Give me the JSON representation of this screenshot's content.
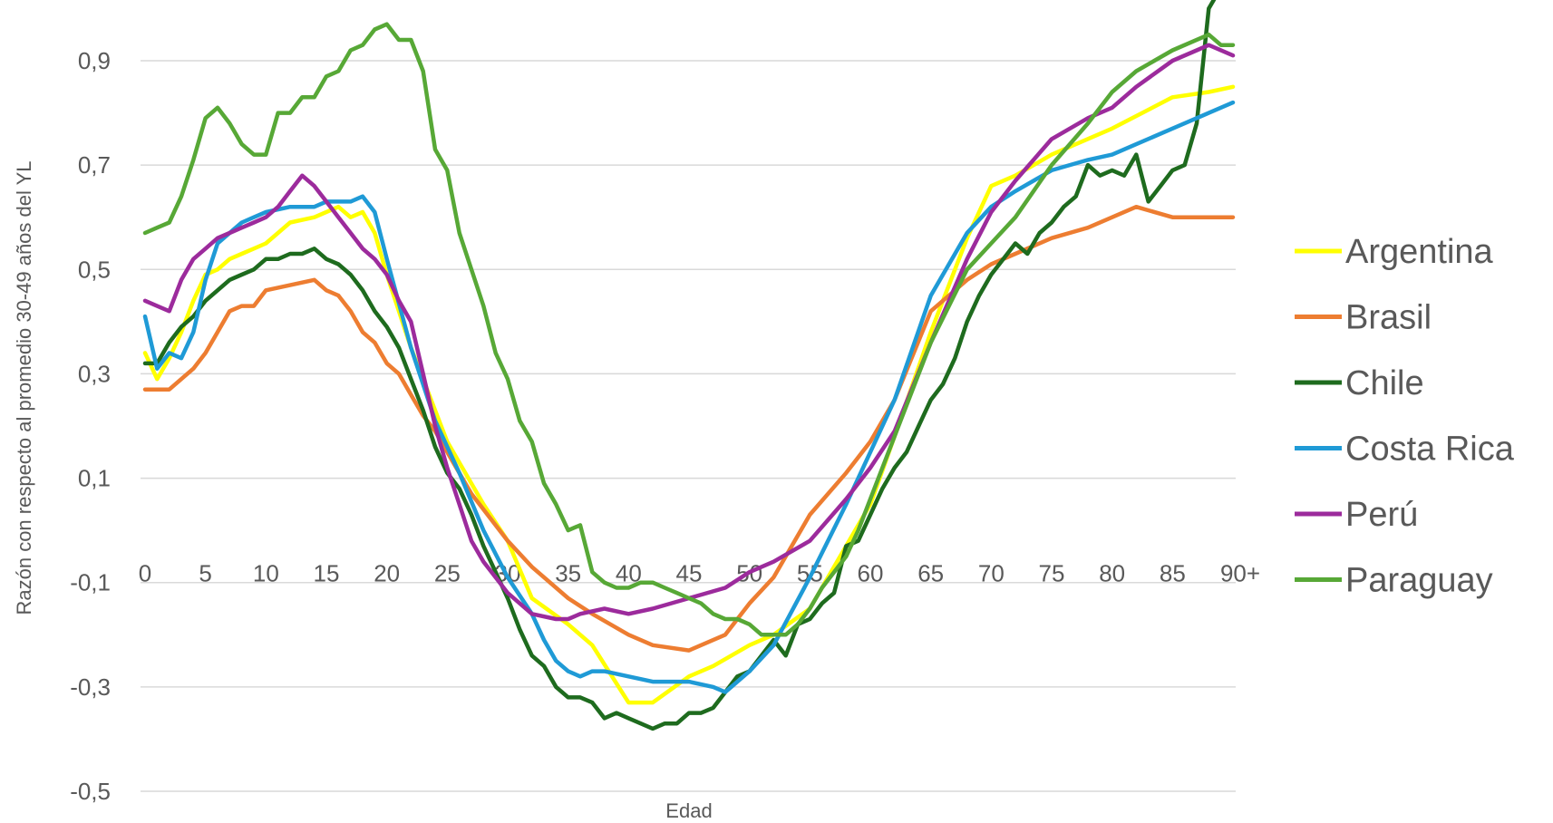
{
  "chart_data": {
    "type": "line",
    "xlabel": "Edad",
    "ylabel": "Razón con respecto al promedio 30-49 años del YL",
    "ylim": [
      -0.5,
      0.9
    ],
    "yticks": [
      {
        "value": 0.9,
        "label": "0,9"
      },
      {
        "value": 0.7,
        "label": "0,7"
      },
      {
        "value": 0.5,
        "label": "0,5"
      },
      {
        "value": 0.3,
        "label": "0,3"
      },
      {
        "value": 0.1,
        "label": "0,1"
      },
      {
        "value": -0.1,
        "label": "-0,1"
      },
      {
        "value": -0.3,
        "label": "-0,3"
      },
      {
        "value": -0.5,
        "label": "-0,5"
      }
    ],
    "xticks": [
      {
        "value": 0,
        "label": "0"
      },
      {
        "value": 5,
        "label": "5"
      },
      {
        "value": 10,
        "label": "10"
      },
      {
        "value": 15,
        "label": "15"
      },
      {
        "value": 20,
        "label": "20"
      },
      {
        "value": 25,
        "label": "25"
      },
      {
        "value": 30,
        "label": "30"
      },
      {
        "value": 35,
        "label": "35"
      },
      {
        "value": 40,
        "label": "40"
      },
      {
        "value": 45,
        "label": "45"
      },
      {
        "value": 50,
        "label": "50"
      },
      {
        "value": 55,
        "label": "55"
      },
      {
        "value": 60,
        "label": "60"
      },
      {
        "value": 65,
        "label": "65"
      },
      {
        "value": 70,
        "label": "70"
      },
      {
        "value": 75,
        "label": "75"
      },
      {
        "value": 80,
        "label": "80"
      },
      {
        "value": 85,
        "label": "85"
      },
      {
        "value": 90,
        "label": "90+"
      }
    ],
    "grid": true,
    "legend_position": "right",
    "series": [
      {
        "name": "Argentina",
        "color": "#ffff00",
        "x": [
          0,
          1,
          2,
          3,
          4,
          5,
          6,
          7,
          8,
          9,
          10,
          12,
          14,
          16,
          17,
          18,
          19,
          20,
          22,
          25,
          28,
          30,
          32,
          35,
          37,
          40,
          42,
          45,
          47,
          50,
          52,
          55,
          58,
          60,
          62,
          65,
          68,
          70,
          72,
          75,
          80,
          85,
          88,
          90
        ],
        "y": [
          0.34,
          0.29,
          0.33,
          0.38,
          0.44,
          0.49,
          0.5,
          0.52,
          0.53,
          0.54,
          0.55,
          0.59,
          0.6,
          0.62,
          0.6,
          0.61,
          0.57,
          0.49,
          0.35,
          0.17,
          0.05,
          -0.02,
          -0.13,
          -0.18,
          -0.22,
          -0.33,
          -0.33,
          -0.28,
          -0.26,
          -0.22,
          -0.2,
          -0.15,
          -0.03,
          0.05,
          0.18,
          0.38,
          0.56,
          0.66,
          0.68,
          0.72,
          0.77,
          0.83,
          0.84,
          0.85
        ]
      },
      {
        "name": "Brasil",
        "color": "#ed7d31",
        "x": [
          0,
          1,
          2,
          3,
          4,
          5,
          6,
          7,
          8,
          9,
          10,
          12,
          14,
          15,
          16,
          17,
          18,
          19,
          20,
          21,
          22,
          23,
          24,
          25,
          27,
          30,
          32,
          35,
          37,
          40,
          42,
          45,
          48,
          50,
          52,
          55,
          58,
          60,
          62,
          65,
          68,
          70,
          72,
          75,
          78,
          80,
          82,
          85,
          88,
          90
        ],
        "y": [
          0.27,
          0.27,
          0.27,
          0.29,
          0.31,
          0.34,
          0.38,
          0.42,
          0.43,
          0.43,
          0.46,
          0.47,
          0.48,
          0.46,
          0.45,
          0.42,
          0.38,
          0.36,
          0.32,
          0.3,
          0.26,
          0.22,
          0.19,
          0.15,
          0.07,
          -0.02,
          -0.07,
          -0.13,
          -0.16,
          -0.2,
          -0.22,
          -0.23,
          -0.2,
          -0.14,
          -0.09,
          0.03,
          0.11,
          0.17,
          0.25,
          0.42,
          0.48,
          0.51,
          0.53,
          0.56,
          0.58,
          0.6,
          0.62,
          0.6,
          0.6,
          0.6
        ]
      },
      {
        "name": "Chile",
        "color": "#1e6b1e",
        "x": [
          0,
          1,
          2,
          3,
          4,
          5,
          6,
          7,
          8,
          9,
          10,
          11,
          12,
          13,
          14,
          15,
          16,
          17,
          18,
          19,
          20,
          21,
          22,
          23,
          24,
          25,
          26,
          27,
          28,
          29,
          30,
          31,
          32,
          33,
          34,
          35,
          36,
          37,
          38,
          39,
          40,
          41,
          42,
          43,
          44,
          45,
          46,
          47,
          48,
          49,
          50,
          51,
          52,
          53,
          54,
          55,
          56,
          57,
          58,
          59,
          60,
          61,
          62,
          63,
          64,
          65,
          66,
          67,
          68,
          69,
          70,
          71,
          72,
          73,
          74,
          75,
          76,
          77,
          78,
          79,
          80,
          81,
          82,
          83,
          84,
          85,
          86,
          87,
          88,
          88.5
        ],
        "y": [
          0.32,
          0.32,
          0.36,
          0.39,
          0.41,
          0.44,
          0.46,
          0.48,
          0.49,
          0.5,
          0.52,
          0.52,
          0.53,
          0.53,
          0.54,
          0.52,
          0.51,
          0.49,
          0.46,
          0.42,
          0.39,
          0.35,
          0.29,
          0.23,
          0.16,
          0.11,
          0.08,
          0.03,
          -0.03,
          -0.08,
          -0.13,
          -0.19,
          -0.24,
          -0.26,
          -0.3,
          -0.32,
          -0.32,
          -0.33,
          -0.36,
          -0.35,
          -0.36,
          -0.37,
          -0.38,
          -0.37,
          -0.37,
          -0.35,
          -0.35,
          -0.34,
          -0.31,
          -0.28,
          -0.27,
          -0.24,
          -0.21,
          -0.24,
          -0.18,
          -0.17,
          -0.14,
          -0.12,
          -0.03,
          -0.02,
          0.03,
          0.08,
          0.12,
          0.15,
          0.2,
          0.25,
          0.28,
          0.33,
          0.4,
          0.45,
          0.49,
          0.52,
          0.55,
          0.53,
          0.57,
          0.59,
          0.62,
          0.64,
          0.7,
          0.68,
          0.69,
          0.68,
          0.72,
          0.63,
          0.66,
          0.69,
          0.7,
          0.78,
          1.0,
          1.02
        ]
      },
      {
        "name": "Costa Rica",
        "color": "#1f9ad6",
        "x": [
          0,
          1,
          2,
          3,
          4,
          5,
          6,
          7,
          8,
          9,
          10,
          12,
          14,
          15,
          16,
          17,
          18,
          19,
          20,
          22,
          24,
          26,
          28,
          30,
          32,
          33,
          34,
          35,
          36,
          37,
          38,
          40,
          42,
          45,
          47,
          48,
          50,
          52,
          55,
          58,
          60,
          62,
          65,
          68,
          70,
          72,
          75,
          78,
          80,
          82,
          85,
          88,
          90
        ],
        "y": [
          0.41,
          0.31,
          0.34,
          0.33,
          0.38,
          0.48,
          0.55,
          0.57,
          0.59,
          0.6,
          0.61,
          0.62,
          0.62,
          0.63,
          0.63,
          0.63,
          0.64,
          0.61,
          0.52,
          0.35,
          0.21,
          0.11,
          0.0,
          -0.09,
          -0.16,
          -0.21,
          -0.25,
          -0.27,
          -0.28,
          -0.27,
          -0.27,
          -0.28,
          -0.29,
          -0.29,
          -0.3,
          -0.31,
          -0.27,
          -0.22,
          -0.09,
          0.05,
          0.15,
          0.25,
          0.45,
          0.57,
          0.62,
          0.65,
          0.69,
          0.71,
          0.72,
          0.74,
          0.77,
          0.8,
          0.82
        ]
      },
      {
        "name": "Perú",
        "color": "#9c2b9c",
        "x": [
          0,
          1,
          2,
          3,
          4,
          5,
          6,
          7,
          8,
          9,
          10,
          11,
          12,
          13,
          14,
          15,
          16,
          17,
          18,
          19,
          20,
          21,
          22,
          23,
          24,
          25,
          26,
          27,
          28,
          29,
          30,
          32,
          34,
          35,
          36,
          38,
          40,
          42,
          45,
          48,
          50,
          52,
          55,
          58,
          60,
          62,
          65,
          68,
          70,
          72,
          75,
          78,
          80,
          82,
          85,
          87,
          88,
          90
        ],
        "y": [
          0.44,
          0.43,
          0.42,
          0.48,
          0.52,
          0.54,
          0.56,
          0.57,
          0.58,
          0.59,
          0.6,
          0.62,
          0.65,
          0.68,
          0.66,
          0.63,
          0.6,
          0.57,
          0.54,
          0.52,
          0.49,
          0.44,
          0.4,
          0.3,
          0.2,
          0.12,
          0.05,
          -0.02,
          -0.06,
          -0.09,
          -0.12,
          -0.16,
          -0.17,
          -0.17,
          -0.16,
          -0.15,
          -0.16,
          -0.15,
          -0.13,
          -0.11,
          -0.08,
          -0.06,
          -0.02,
          0.06,
          0.12,
          0.19,
          0.36,
          0.52,
          0.61,
          0.67,
          0.75,
          0.79,
          0.81,
          0.85,
          0.9,
          0.92,
          0.93,
          0.91
        ]
      },
      {
        "name": "Paraguay",
        "color": "#57a836",
        "x": [
          0,
          1,
          2,
          3,
          4,
          5,
          6,
          7,
          8,
          9,
          10,
          11,
          12,
          13,
          14,
          15,
          16,
          17,
          18,
          19,
          20,
          21,
          22,
          23,
          24,
          25,
          26,
          27,
          28,
          29,
          30,
          31,
          32,
          33,
          34,
          35,
          36,
          37,
          38,
          39,
          40,
          41,
          42,
          43,
          44,
          45,
          46,
          47,
          48,
          49,
          50,
          51,
          52,
          53,
          54,
          55,
          56,
          57,
          58,
          59,
          60,
          62,
          65,
          68,
          70,
          72,
          75,
          78,
          80,
          82,
          85,
          88,
          89,
          90
        ],
        "y": [
          0.57,
          0.58,
          0.59,
          0.64,
          0.71,
          0.79,
          0.81,
          0.78,
          0.74,
          0.72,
          0.72,
          0.8,
          0.8,
          0.83,
          0.83,
          0.87,
          0.88,
          0.92,
          0.93,
          0.96,
          0.97,
          0.94,
          0.94,
          0.88,
          0.73,
          0.69,
          0.57,
          0.5,
          0.43,
          0.34,
          0.29,
          0.21,
          0.17,
          0.09,
          0.05,
          0.0,
          0.01,
          -0.08,
          -0.1,
          -0.11,
          -0.11,
          -0.1,
          -0.1,
          -0.11,
          -0.12,
          -0.13,
          -0.14,
          -0.16,
          -0.17,
          -0.17,
          -0.18,
          -0.2,
          -0.2,
          -0.2,
          -0.18,
          -0.15,
          -0.11,
          -0.08,
          -0.05,
          0.0,
          0.06,
          0.18,
          0.36,
          0.5,
          0.55,
          0.6,
          0.7,
          0.78,
          0.84,
          0.88,
          0.92,
          0.95,
          0.93,
          0.93
        ]
      }
    ]
  }
}
